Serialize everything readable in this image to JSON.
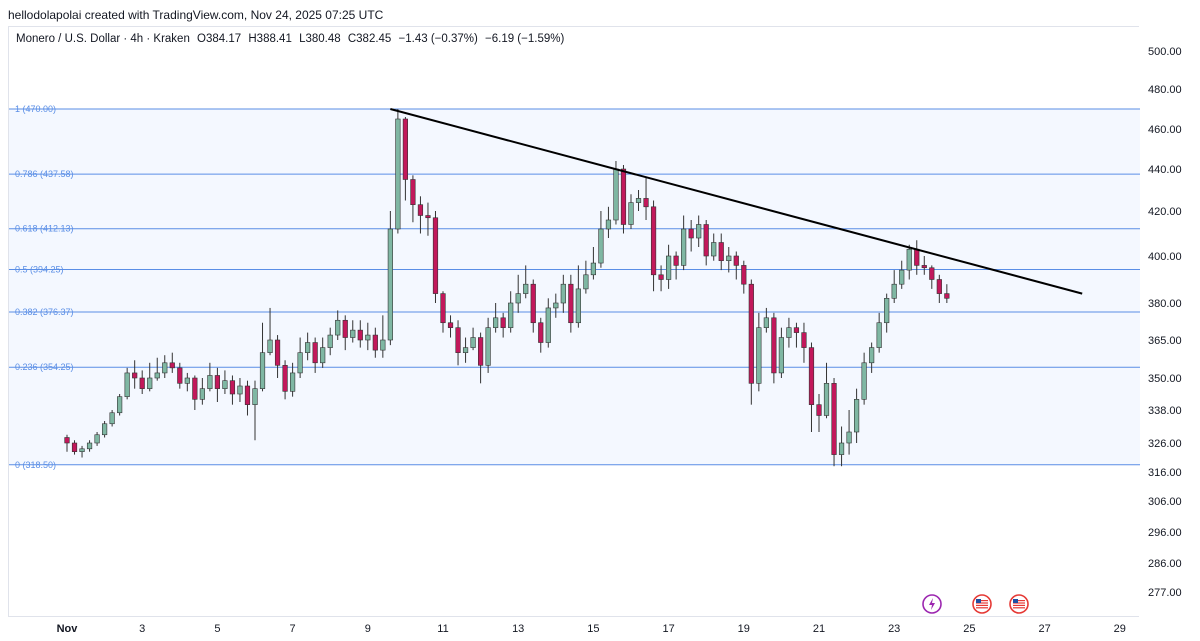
{
  "header": {
    "credit": "hellodolapolai created with TradingView.com, Nov 24, 2025 07:25 UTC",
    "symbol": "Monero / U.S. Dollar · 4h · Kraken",
    "open": "O384.17",
    "high": "H388.41",
    "low": "L380.48",
    "close": "C382.45",
    "change": "−1.43 (−0.37%)",
    "change2": "−6.19 (−1.59%)"
  },
  "colors": {
    "up": "#7fb7a3",
    "down": "#c2185b",
    "fib": "#5a8ee6",
    "fib_fill": "#f4f8ff",
    "trendline": "#000000",
    "grid": "#e0e3eb"
  },
  "icons": [
    "lightning-icon",
    "us-flag-icon",
    "us-flag-icon"
  ],
  "chart_data": {
    "type": "candlestick",
    "title": "Monero / U.S. Dollar · 4h · Kraken",
    "y_ticks": [
      "500.00",
      "480.00",
      "460.00",
      "440.00",
      "420.00",
      "400.00",
      "380.00",
      "365.00",
      "350.00",
      "338.00",
      "326.00",
      "316.00",
      "306.00",
      "296.00",
      "286.00",
      "277.00"
    ],
    "x_ticks": [
      "Nov",
      "3",
      "5",
      "7",
      "9",
      "11",
      "13",
      "15",
      "17",
      "19",
      "21",
      "23",
      "25",
      "27",
      "29"
    ],
    "fib_levels": [
      {
        "label": "1 (470.00)",
        "value": 470.0
      },
      {
        "label": "0.786 (437.58)",
        "value": 437.58
      },
      {
        "label": "0.618 (412.13)",
        "value": 412.13
      },
      {
        "label": "0.5 (394.25)",
        "value": 394.25
      },
      {
        "label": "0.382 (376.37)",
        "value": 376.37
      },
      {
        "label": "0.236 (354.25)",
        "value": 354.25
      },
      {
        "label": "0 (318.50)",
        "value": 318.5
      }
    ],
    "trendline": {
      "from": {
        "day": 9.6,
        "price": 470.0
      },
      "to": {
        "day": 28.0,
        "price": 384.0
      }
    },
    "candles": [
      [
        1.0,
        328,
        326,
        329,
        323
      ],
      [
        1.2,
        326,
        323,
        327,
        322
      ],
      [
        1.4,
        323,
        324,
        325,
        321
      ],
      [
        1.6,
        324,
        326,
        327,
        323
      ],
      [
        1.8,
        326,
        329,
        330,
        325
      ],
      [
        2.0,
        329,
        333,
        334,
        328
      ],
      [
        2.2,
        333,
        337,
        338,
        332
      ],
      [
        2.4,
        337,
        343,
        344,
        336
      ],
      [
        2.6,
        343,
        352,
        354,
        342
      ],
      [
        2.8,
        352,
        350,
        357,
        346
      ],
      [
        3.0,
        350,
        346,
        353,
        344
      ],
      [
        3.2,
        346,
        350,
        356,
        345
      ],
      [
        3.4,
        350,
        352,
        358,
        349
      ],
      [
        3.6,
        352,
        356,
        359,
        350
      ],
      [
        3.8,
        356,
        354,
        360,
        352
      ],
      [
        4.0,
        354,
        348,
        356,
        346
      ],
      [
        4.2,
        348,
        350,
        352,
        345
      ],
      [
        4.4,
        350,
        342,
        351,
        338
      ],
      [
        4.6,
        342,
        346,
        350,
        340
      ],
      [
        4.8,
        346,
        351,
        356,
        345
      ],
      [
        5.0,
        351,
        346,
        354,
        341
      ],
      [
        5.2,
        346,
        349,
        353,
        344
      ],
      [
        5.4,
        349,
        344,
        351,
        340
      ],
      [
        5.6,
        344,
        347,
        350,
        341
      ],
      [
        5.8,
        347,
        340,
        349,
        336
      ],
      [
        6.0,
        340,
        346,
        349,
        327
      ],
      [
        6.2,
        346,
        360,
        372,
        345
      ],
      [
        6.4,
        360,
        365,
        378,
        359
      ],
      [
        6.6,
        365,
        355,
        367,
        350
      ],
      [
        6.8,
        355,
        345,
        357,
        342
      ],
      [
        7.0,
        345,
        352,
        356,
        343
      ],
      [
        7.2,
        352,
        360,
        366,
        350
      ],
      [
        7.4,
        360,
        364,
        368,
        357
      ],
      [
        7.6,
        364,
        356,
        366,
        352
      ],
      [
        7.8,
        356,
        362,
        366,
        354
      ],
      [
        8.0,
        362,
        367,
        370,
        359
      ],
      [
        8.2,
        367,
        373,
        377,
        365
      ],
      [
        8.4,
        373,
        366,
        375,
        361
      ],
      [
        8.6,
        366,
        369,
        373,
        364
      ],
      [
        8.8,
        369,
        365,
        373,
        362
      ],
      [
        9.0,
        365,
        367,
        372,
        361
      ],
      [
        9.2,
        367,
        361,
        370,
        358
      ],
      [
        9.4,
        361,
        365,
        375,
        358
      ],
      [
        9.6,
        365,
        412,
        420,
        363
      ],
      [
        9.8,
        412,
        465,
        470,
        410
      ],
      [
        10.0,
        465,
        435,
        466,
        425
      ],
      [
        10.2,
        435,
        423,
        437,
        415
      ],
      [
        10.4,
        423,
        418,
        427,
        410
      ],
      [
        10.6,
        418,
        417,
        424,
        409
      ],
      [
        10.8,
        417,
        384,
        420,
        380
      ],
      [
        11.0,
        384,
        372,
        385,
        368
      ],
      [
        11.2,
        372,
        370,
        375,
        366
      ],
      [
        11.4,
        370,
        360,
        373,
        355
      ],
      [
        11.6,
        360,
        362,
        366,
        356
      ],
      [
        11.8,
        362,
        366,
        370,
        361
      ],
      [
        12.0,
        366,
        355,
        368,
        348
      ],
      [
        12.2,
        355,
        370,
        374,
        352
      ],
      [
        12.4,
        370,
        374,
        380,
        368
      ],
      [
        12.6,
        374,
        370,
        376,
        366
      ],
      [
        12.8,
        370,
        380,
        385,
        368
      ],
      [
        13.0,
        380,
        384,
        392,
        376
      ],
      [
        13.2,
        384,
        388,
        396,
        382
      ],
      [
        13.4,
        388,
        372,
        390,
        368
      ],
      [
        13.6,
        372,
        364,
        374,
        360
      ],
      [
        13.8,
        364,
        378,
        382,
        362
      ],
      [
        14.0,
        378,
        380,
        384,
        374
      ],
      [
        14.2,
        380,
        388,
        392,
        376
      ],
      [
        14.4,
        388,
        372,
        392,
        368
      ],
      [
        14.6,
        372,
        386,
        396,
        370
      ],
      [
        14.8,
        386,
        392,
        398,
        384
      ],
      [
        15.0,
        392,
        397,
        404,
        390
      ],
      [
        15.2,
        397,
        412,
        420,
        395
      ],
      [
        15.4,
        412,
        416,
        422,
        408
      ],
      [
        15.6,
        416,
        440,
        444,
        414
      ],
      [
        15.8,
        440,
        414,
        442,
        410
      ],
      [
        16.0,
        414,
        424,
        428,
        412
      ],
      [
        16.2,
        424,
        426,
        430,
        420
      ],
      [
        16.4,
        426,
        422,
        436,
        416
      ],
      [
        16.6,
        422,
        392,
        425,
        385
      ],
      [
        16.8,
        392,
        390,
        396,
        385
      ],
      [
        17.0,
        390,
        400,
        405,
        386
      ],
      [
        17.2,
        400,
        396,
        402,
        390
      ],
      [
        17.4,
        396,
        412,
        418,
        394
      ],
      [
        17.6,
        412,
        408,
        416,
        402
      ],
      [
        17.8,
        408,
        414,
        418,
        404
      ],
      [
        18.0,
        414,
        400,
        416,
        396
      ],
      [
        18.2,
        400,
        406,
        410,
        398
      ],
      [
        18.4,
        406,
        398,
        410,
        394
      ],
      [
        18.6,
        398,
        400,
        404,
        393
      ],
      [
        18.8,
        400,
        396,
        402,
        390
      ],
      [
        19.0,
        396,
        388,
        398,
        384
      ],
      [
        19.2,
        388,
        348,
        390,
        340
      ],
      [
        19.4,
        348,
        370,
        376,
        345
      ],
      [
        19.6,
        370,
        374,
        378,
        368
      ],
      [
        19.8,
        374,
        352,
        376,
        348
      ],
      [
        20.0,
        352,
        366,
        370,
        350
      ],
      [
        20.2,
        366,
        370,
        374,
        362
      ],
      [
        20.4,
        370,
        368,
        372,
        362
      ],
      [
        20.6,
        368,
        362,
        372,
        356
      ],
      [
        20.8,
        362,
        340,
        364,
        330
      ],
      [
        21.0,
        340,
        336,
        344,
        330
      ],
      [
        21.2,
        336,
        348,
        356,
        335
      ],
      [
        21.4,
        348,
        322,
        350,
        318
      ],
      [
        21.6,
        322,
        326,
        332,
        318
      ],
      [
        21.8,
        326,
        330,
        338,
        322
      ],
      [
        22.0,
        330,
        342,
        346,
        326
      ],
      [
        22.2,
        342,
        356,
        360,
        340
      ],
      [
        22.4,
        356,
        362,
        364,
        352
      ],
      [
        22.6,
        362,
        372,
        376,
        360
      ],
      [
        22.8,
        372,
        382,
        384,
        368
      ],
      [
        23.0,
        382,
        388,
        394,
        380
      ],
      [
        23.2,
        388,
        394,
        398,
        386
      ],
      [
        23.4,
        394,
        403,
        405,
        390
      ],
      [
        23.6,
        403,
        396,
        407,
        392
      ],
      [
        23.8,
        396,
        395,
        400,
        392
      ],
      [
        24.0,
        395,
        390,
        396,
        386
      ],
      [
        24.2,
        390,
        384,
        392,
        380
      ],
      [
        24.4,
        384,
        382,
        388,
        380
      ]
    ]
  }
}
